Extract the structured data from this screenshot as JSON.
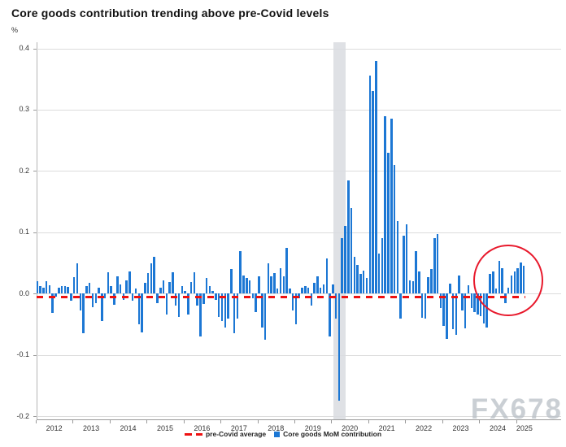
{
  "title": "Core goods contribution trending above pre-Covid levels",
  "unit_label": "%",
  "watermark": "FX678",
  "legend": [
    {
      "swatch": "red-dashed-line",
      "color": "#ee1111",
      "label": "pre-Covid average"
    },
    {
      "swatch": "blue-square",
      "color": "#1c77d4",
      "label": "Core goods MoM contribution"
    }
  ],
  "chart_data": {
    "type": "bar",
    "title": "Core goods contribution trending above pre-Covid levels",
    "ylabel": "%",
    "xlabel": "",
    "ylim": [
      -0.205,
      0.41
    ],
    "yticks": [
      {
        "value": 0.4,
        "label": "0.4"
      },
      {
        "value": 0.3,
        "label": "0.3"
      },
      {
        "value": 0.2,
        "label": "0.2"
      },
      {
        "value": 0.1,
        "label": "0.1"
      },
      {
        "value": 0.0,
        "label": "0.0"
      },
      {
        "value": -0.1,
        "label": "-0.1"
      },
      {
        "value": -0.2,
        "label": "-0.2"
      }
    ],
    "grid": "horizontal",
    "legend_position": "bottom-center",
    "series_name": "Core goods MoM contribution",
    "x_monthly_start": "2012-01",
    "x_monthly_end": "2025-03",
    "values": [
      0.02,
      0.013,
      0.01,
      0.02,
      0.014,
      -0.032,
      -0.005,
      0.01,
      0.013,
      0.012,
      0.011,
      -0.012,
      0.027,
      0.05,
      -0.028,
      -0.065,
      0.012,
      0.018,
      -0.022,
      -0.015,
      0.01,
      -0.045,
      -0.008,
      0.035,
      0.012,
      -0.018,
      0.028,
      0.015,
      -0.01,
      0.022,
      0.036,
      -0.012,
      0.008,
      -0.05,
      -0.063,
      0.018,
      0.034,
      0.049,
      0.06,
      -0.015,
      0.01,
      0.022,
      -0.034,
      0.019,
      0.035,
      -0.019,
      -0.038,
      0.012,
      0.005,
      -0.034,
      0.019,
      0.035,
      -0.019,
      -0.07,
      -0.017,
      0.026,
      0.012,
      0.005,
      -0.01,
      -0.038,
      -0.045,
      -0.055,
      -0.04,
      0.04,
      -0.065,
      -0.04,
      0.07,
      0.03,
      0.025,
      0.022,
      -0.008,
      -0.03,
      0.028,
      -0.055,
      -0.075,
      0.05,
      0.028,
      0.034,
      0.008,
      0.042,
      0.028,
      0.075,
      0.008,
      -0.028,
      -0.05,
      -0.008,
      0.01,
      0.012,
      0.01,
      -0.02,
      0.018,
      0.028,
      0.01,
      0.015,
      0.058,
      -0.07,
      0.015,
      -0.04,
      -0.175,
      0.09,
      0.11,
      0.185,
      0.14,
      0.06,
      0.047,
      0.032,
      0.037,
      0.025,
      0.355,
      0.33,
      0.38,
      0.066,
      0.091,
      0.29,
      0.23,
      0.285,
      0.21,
      0.118,
      -0.04,
      0.094,
      0.113,
      0.022,
      0.02,
      0.069,
      0.036,
      -0.039,
      -0.041,
      0.027,
      0.04,
      0.091,
      0.097,
      -0.023,
      -0.052,
      -0.074,
      0.016,
      -0.058,
      -0.067,
      0.03,
      -0.028,
      -0.057,
      0.014,
      -0.024,
      -0.03,
      -0.034,
      -0.037,
      -0.048,
      -0.055,
      0.032,
      0.036,
      0.008,
      0.054,
      0.042,
      -0.015,
      0.01,
      0.029,
      0.036,
      0.041,
      0.051,
      0.045
    ],
    "pre_covid_average": -0.005,
    "xticks": [
      {
        "label": "2012",
        "center_index": 5.5
      },
      {
        "label": "2013",
        "center_index": 17.5
      },
      {
        "label": "2014",
        "center_index": 29.5
      },
      {
        "label": "2015",
        "center_index": 41.5
      },
      {
        "label": "2016",
        "center_index": 53.5
      },
      {
        "label": "2017",
        "center_index": 65.5
      },
      {
        "label": "2018",
        "center_index": 77.5
      },
      {
        "label": "2019",
        "center_index": 89.5
      },
      {
        "label": "2020",
        "center_index": 101.5
      },
      {
        "label": "2021",
        "center_index": 113.5
      },
      {
        "label": "2022",
        "center_index": 125.5
      },
      {
        "label": "2023",
        "center_index": 137.5
      },
      {
        "label": "2024",
        "center_index": 149.5
      },
      {
        "label": "2025",
        "center_index": 158.2
      }
    ],
    "annotations": {
      "covid_band": {
        "start_index": 96.3,
        "end_index": 100.1,
        "color": "#d9dce1"
      },
      "highlight_circle": {
        "center_index": 152.5,
        "center_value": 0.024,
        "radius_months": 10.8,
        "radius_value": 0.056,
        "color": "#e8192c"
      }
    },
    "bar_color": "#1c77d4",
    "average_line_color": "#ee1111"
  }
}
